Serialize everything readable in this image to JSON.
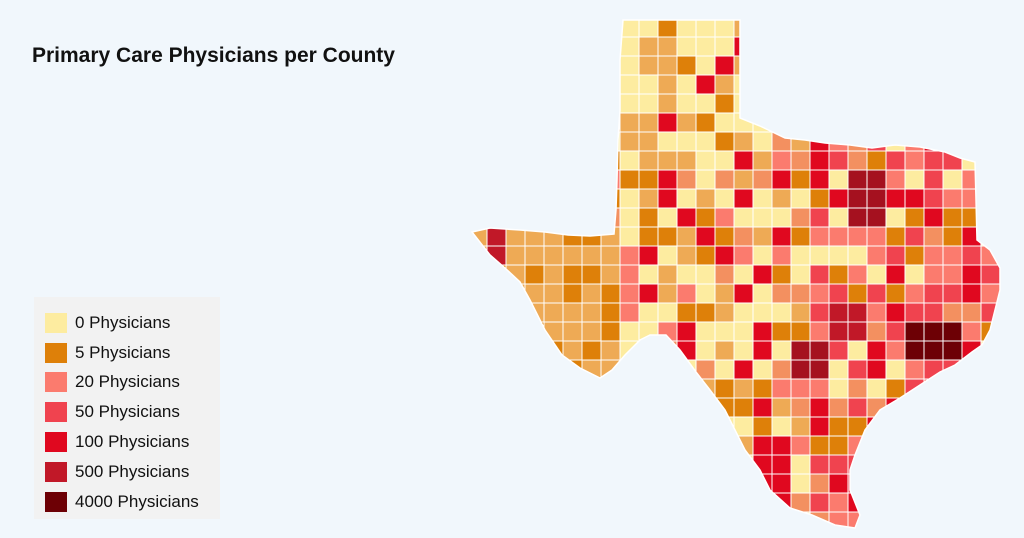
{
  "title": "Primary Care Physicians per County",
  "legend": {
    "items": [
      {
        "label": "0 Physicians",
        "color": "#fdeca0"
      },
      {
        "label": "5 Physicians",
        "color": "#de8009"
      },
      {
        "label": "20 Physicians",
        "color": "#fb7b6e"
      },
      {
        "label": "50 Physicians",
        "color": "#f0434f"
      },
      {
        "label": "100 Physicians",
        "color": "#e0081f"
      },
      {
        "label": "500 Physicians",
        "color": "#c11828"
      },
      {
        "label": "4000 Physicians",
        "color": "#6d0005"
      }
    ]
  },
  "map": {
    "region": "Texas",
    "county_colors": [
      "#fdeca0",
      "#eeaa55",
      "#e59a4a",
      "#de8009",
      "#f39060",
      "#fb7b6e",
      "#f0434f",
      "#e0081f",
      "#c11828",
      "#a5111f",
      "#6d0005"
    ]
  }
}
